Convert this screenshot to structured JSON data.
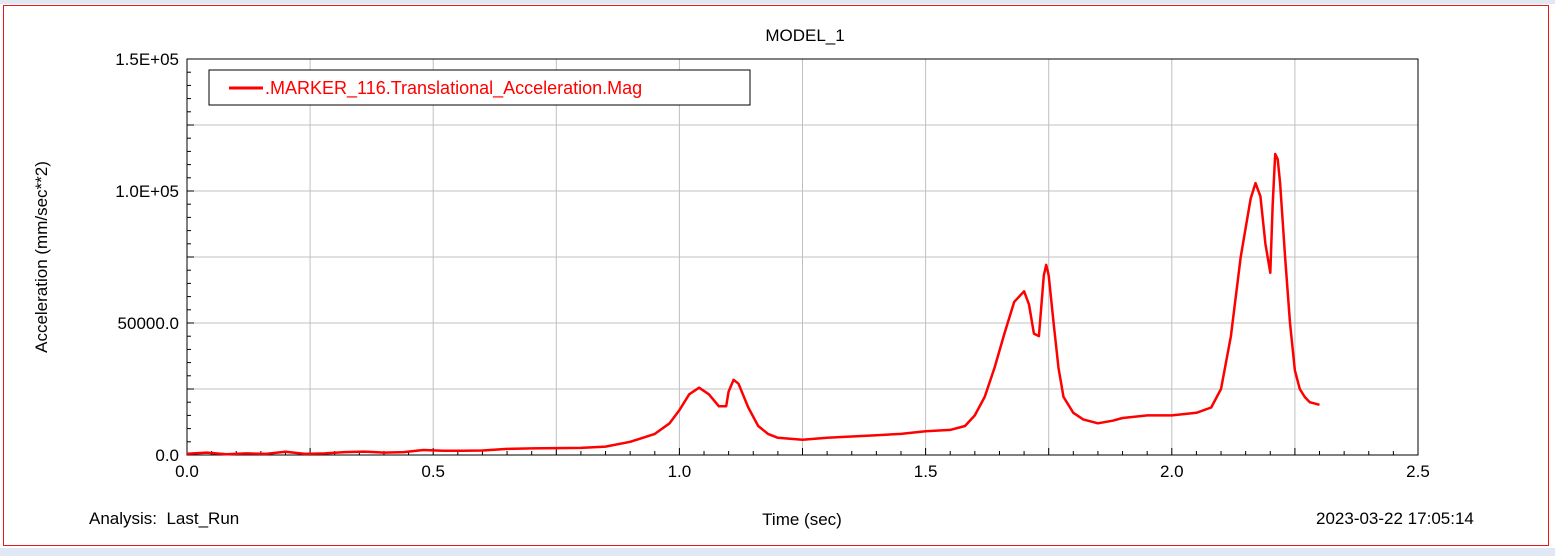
{
  "window": {
    "accent_color": "#dfe8f3",
    "frame_color": "#e81818"
  },
  "footer": {
    "analysis_label": "Analysis:  Last_Run",
    "timestamp": "2023-03-22 17:05:14"
  },
  "chart_data": {
    "type": "line",
    "title": "MODEL_1",
    "xlabel": "Time (sec)",
    "ylabel": "Acceleration (mm/sec**2)",
    "xlim": [
      0.0,
      2.5
    ],
    "ylim": [
      0,
      150000
    ],
    "x_ticks": [
      0.0,
      0.5,
      1.0,
      1.5,
      2.0,
      2.5
    ],
    "x_tick_labels": [
      "0.0",
      "0.5",
      "1.0",
      "1.5",
      "2.0",
      "2.5"
    ],
    "y_ticks": [
      0,
      50000,
      100000,
      150000
    ],
    "y_tick_labels": [
      "0.0",
      "50000.0",
      "1.0E+05",
      "1.5E+05"
    ],
    "grid": true,
    "legend_position": "top-left",
    "series": [
      {
        "name": ".MARKER_116.Translational_Acceleration.Mag",
        "color": "#ff0000",
        "x": [
          0.0,
          0.04,
          0.08,
          0.12,
          0.16,
          0.2,
          0.24,
          0.28,
          0.32,
          0.36,
          0.4,
          0.44,
          0.48,
          0.52,
          0.56,
          0.6,
          0.65,
          0.7,
          0.75,
          0.8,
          0.85,
          0.9,
          0.95,
          0.98,
          1.0,
          1.02,
          1.04,
          1.06,
          1.08,
          1.095,
          1.1,
          1.11,
          1.12,
          1.14,
          1.16,
          1.18,
          1.2,
          1.25,
          1.3,
          1.35,
          1.4,
          1.45,
          1.5,
          1.55,
          1.58,
          1.6,
          1.62,
          1.64,
          1.66,
          1.68,
          1.7,
          1.71,
          1.72,
          1.73,
          1.74,
          1.745,
          1.75,
          1.76,
          1.77,
          1.78,
          1.8,
          1.82,
          1.85,
          1.88,
          1.9,
          1.95,
          2.0,
          2.05,
          2.08,
          2.1,
          2.12,
          2.14,
          2.16,
          2.17,
          2.18,
          2.19,
          2.2,
          2.205,
          2.21,
          2.215,
          2.22,
          2.23,
          2.24,
          2.25,
          2.26,
          2.27,
          2.28,
          2.3
        ],
        "y": [
          500,
          900,
          300,
          600,
          400,
          1200,
          400,
          600,
          1100,
          1300,
          900,
          1100,
          1900,
          1600,
          1600,
          1700,
          2300,
          2500,
          2600,
          2700,
          3200,
          5000,
          8000,
          12000,
          17000,
          23000,
          25500,
          23000,
          18500,
          18500,
          24000,
          28500,
          27000,
          18000,
          11000,
          8000,
          6500,
          5800,
          6500,
          7000,
          7500,
          8000,
          9000,
          9500,
          11000,
          15000,
          22000,
          33000,
          46000,
          58000,
          62000,
          57000,
          46000,
          45000,
          68000,
          72000,
          68000,
          50000,
          33000,
          22000,
          16000,
          13500,
          12000,
          13000,
          14000,
          15000,
          15000,
          16000,
          18000,
          25000,
          45000,
          75000,
          97000,
          103000,
          98000,
          80000,
          69000,
          95000,
          114000,
          112000,
          103000,
          75000,
          50000,
          32000,
          25000,
          22000,
          20000,
          19000
        ]
      }
    ]
  }
}
